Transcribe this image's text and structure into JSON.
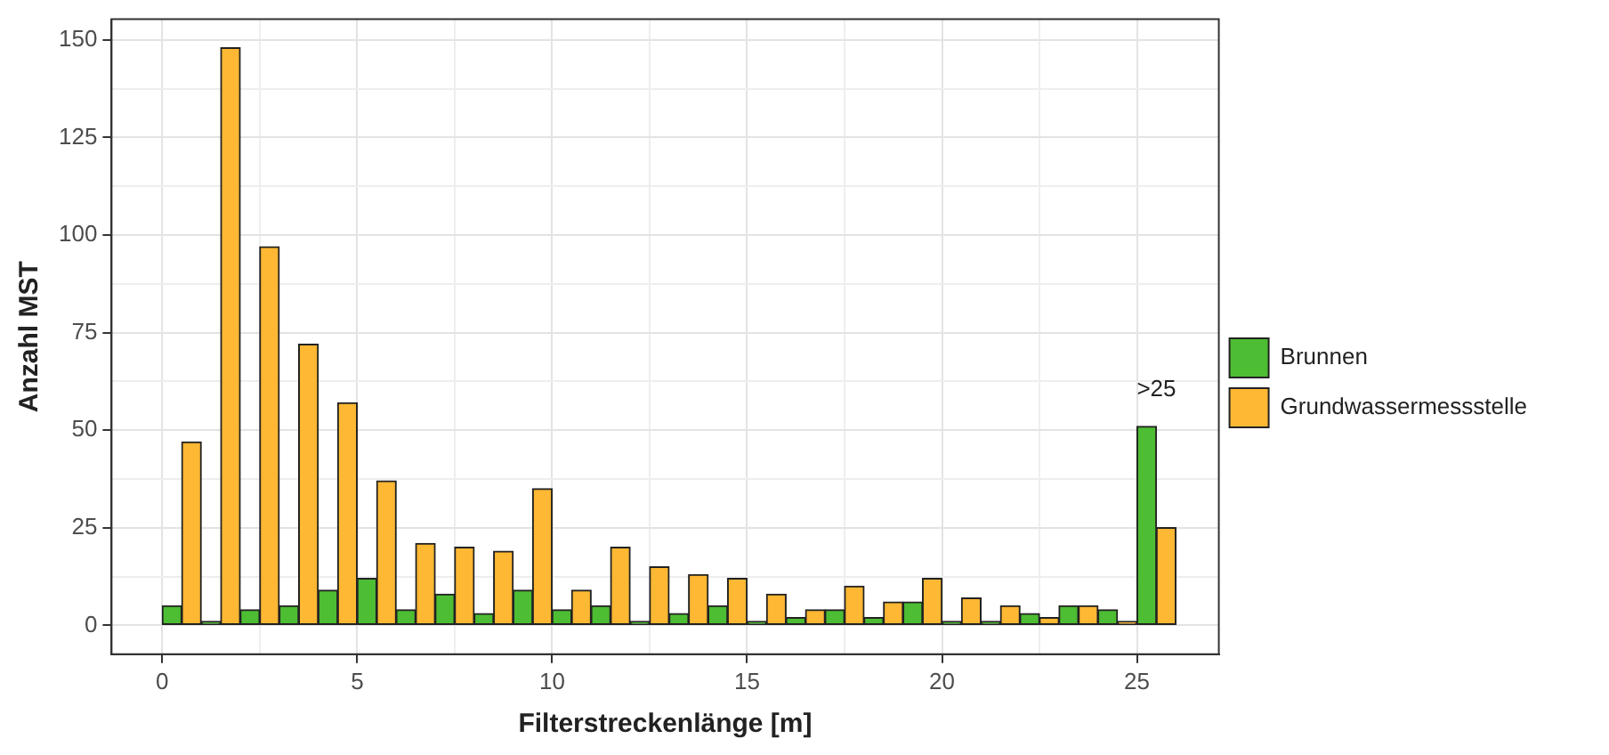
{
  "chart_data": {
    "type": "histogram",
    "xlabel": "Filterstreckenlänge [m]",
    "ylabel": "Anzahl MST",
    "bins": [
      0,
      1,
      2,
      3,
      4,
      5,
      6,
      7,
      8,
      9,
      10,
      11,
      12,
      13,
      14,
      15,
      16,
      17,
      18,
      19,
      20,
      21,
      22,
      23,
      24,
      25,
      26
    ],
    "series": [
      {
        "name": "Brunnen",
        "color": "#4dbd33",
        "values": [
          5,
          1,
          4,
          5,
          9,
          12,
          4,
          8,
          3,
          9,
          4,
          5,
          1,
          3,
          5,
          1,
          2,
          4,
          2,
          6,
          1,
          1,
          3,
          5,
          4,
          51
        ]
      },
      {
        "name": "Grundwassermessstelle",
        "color": "#ffb833",
        "values": [
          47,
          148,
          97,
          72,
          57,
          37,
          21,
          20,
          19,
          35,
          9,
          20,
          15,
          13,
          12,
          8,
          4,
          10,
          6,
          12,
          7,
          5,
          2,
          5,
          1,
          25
        ]
      }
    ],
    "xlim": [
      -1.3,
      27.1
    ],
    "ylim": [
      -7.4,
      155.3
    ],
    "xticks": [
      0,
      {
        "value": 2.5,
        "label": null
      },
      5,
      {
        "value": 7.5,
        "label": null
      },
      10,
      {
        "value": 12.5,
        "label": null
      },
      15,
      {
        "value": 17.5,
        "label": null
      },
      20,
      {
        "value": 22.5,
        "label": null
      },
      25
    ],
    "yticks": [
      0,
      {
        "value": 12.5,
        "label": null
      },
      25,
      {
        "value": 37.5,
        "label": null
      },
      50,
      {
        "value": 62.5,
        "label": null
      },
      75,
      {
        "value": 87.5,
        "label": null
      },
      100,
      {
        "value": 112.5,
        "label": null
      },
      125,
      {
        "value": 137.5,
        "label": null
      },
      150
    ],
    "annotations": [
      {
        "text": ">25",
        "x": 25.5,
        "y": 51
      }
    ],
    "grid": true,
    "legend": "right"
  }
}
